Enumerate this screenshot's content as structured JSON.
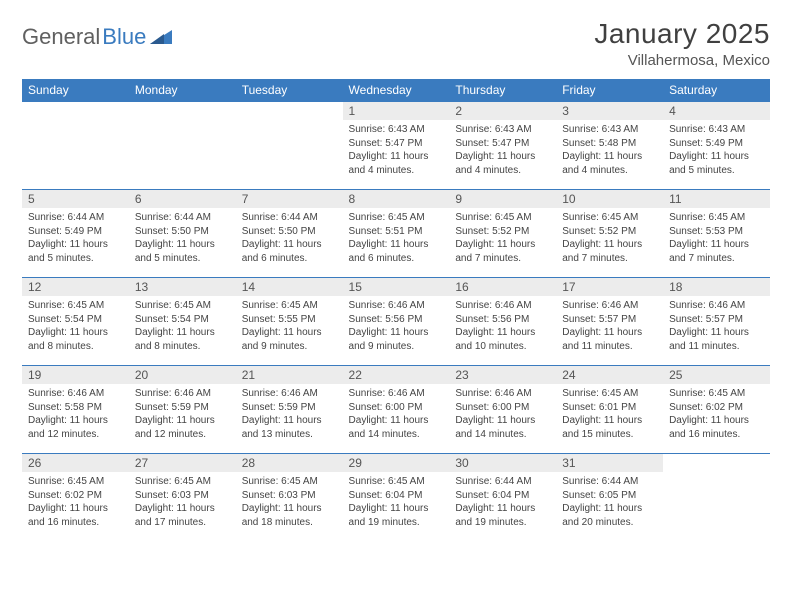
{
  "logo": {
    "part1": "General",
    "part2": "Blue"
  },
  "title": "January 2025",
  "location": "Villahermosa, Mexico",
  "colors": {
    "header_bg": "#3a7bbf",
    "header_text": "#ffffff",
    "daynum_bg": "#ececec",
    "border": "#3a7bbf",
    "logo_gray": "#606060",
    "logo_blue": "#3a7bbf"
  },
  "weekdays": [
    "Sunday",
    "Monday",
    "Tuesday",
    "Wednesday",
    "Thursday",
    "Friday",
    "Saturday"
  ],
  "weeks": [
    [
      null,
      null,
      null,
      {
        "n": "1",
        "sr": "6:43 AM",
        "ss": "5:47 PM",
        "dl": "11 hours and 4 minutes."
      },
      {
        "n": "2",
        "sr": "6:43 AM",
        "ss": "5:47 PM",
        "dl": "11 hours and 4 minutes."
      },
      {
        "n": "3",
        "sr": "6:43 AM",
        "ss": "5:48 PM",
        "dl": "11 hours and 4 minutes."
      },
      {
        "n": "4",
        "sr": "6:43 AM",
        "ss": "5:49 PM",
        "dl": "11 hours and 5 minutes."
      }
    ],
    [
      {
        "n": "5",
        "sr": "6:44 AM",
        "ss": "5:49 PM",
        "dl": "11 hours and 5 minutes."
      },
      {
        "n": "6",
        "sr": "6:44 AM",
        "ss": "5:50 PM",
        "dl": "11 hours and 5 minutes."
      },
      {
        "n": "7",
        "sr": "6:44 AM",
        "ss": "5:50 PM",
        "dl": "11 hours and 6 minutes."
      },
      {
        "n": "8",
        "sr": "6:45 AM",
        "ss": "5:51 PM",
        "dl": "11 hours and 6 minutes."
      },
      {
        "n": "9",
        "sr": "6:45 AM",
        "ss": "5:52 PM",
        "dl": "11 hours and 7 minutes."
      },
      {
        "n": "10",
        "sr": "6:45 AM",
        "ss": "5:52 PM",
        "dl": "11 hours and 7 minutes."
      },
      {
        "n": "11",
        "sr": "6:45 AM",
        "ss": "5:53 PM",
        "dl": "11 hours and 7 minutes."
      }
    ],
    [
      {
        "n": "12",
        "sr": "6:45 AM",
        "ss": "5:54 PM",
        "dl": "11 hours and 8 minutes."
      },
      {
        "n": "13",
        "sr": "6:45 AM",
        "ss": "5:54 PM",
        "dl": "11 hours and 8 minutes."
      },
      {
        "n": "14",
        "sr": "6:45 AM",
        "ss": "5:55 PM",
        "dl": "11 hours and 9 minutes."
      },
      {
        "n": "15",
        "sr": "6:46 AM",
        "ss": "5:56 PM",
        "dl": "11 hours and 9 minutes."
      },
      {
        "n": "16",
        "sr": "6:46 AM",
        "ss": "5:56 PM",
        "dl": "11 hours and 10 minutes."
      },
      {
        "n": "17",
        "sr": "6:46 AM",
        "ss": "5:57 PM",
        "dl": "11 hours and 11 minutes."
      },
      {
        "n": "18",
        "sr": "6:46 AM",
        "ss": "5:57 PM",
        "dl": "11 hours and 11 minutes."
      }
    ],
    [
      {
        "n": "19",
        "sr": "6:46 AM",
        "ss": "5:58 PM",
        "dl": "11 hours and 12 minutes."
      },
      {
        "n": "20",
        "sr": "6:46 AM",
        "ss": "5:59 PM",
        "dl": "11 hours and 12 minutes."
      },
      {
        "n": "21",
        "sr": "6:46 AM",
        "ss": "5:59 PM",
        "dl": "11 hours and 13 minutes."
      },
      {
        "n": "22",
        "sr": "6:46 AM",
        "ss": "6:00 PM",
        "dl": "11 hours and 14 minutes."
      },
      {
        "n": "23",
        "sr": "6:46 AM",
        "ss": "6:00 PM",
        "dl": "11 hours and 14 minutes."
      },
      {
        "n": "24",
        "sr": "6:45 AM",
        "ss": "6:01 PM",
        "dl": "11 hours and 15 minutes."
      },
      {
        "n": "25",
        "sr": "6:45 AM",
        "ss": "6:02 PM",
        "dl": "11 hours and 16 minutes."
      }
    ],
    [
      {
        "n": "26",
        "sr": "6:45 AM",
        "ss": "6:02 PM",
        "dl": "11 hours and 16 minutes."
      },
      {
        "n": "27",
        "sr": "6:45 AM",
        "ss": "6:03 PM",
        "dl": "11 hours and 17 minutes."
      },
      {
        "n": "28",
        "sr": "6:45 AM",
        "ss": "6:03 PM",
        "dl": "11 hours and 18 minutes."
      },
      {
        "n": "29",
        "sr": "6:45 AM",
        "ss": "6:04 PM",
        "dl": "11 hours and 19 minutes."
      },
      {
        "n": "30",
        "sr": "6:44 AM",
        "ss": "6:04 PM",
        "dl": "11 hours and 19 minutes."
      },
      {
        "n": "31",
        "sr": "6:44 AM",
        "ss": "6:05 PM",
        "dl": "11 hours and 20 minutes."
      },
      null
    ]
  ],
  "labels": {
    "sunrise": "Sunrise:",
    "sunset": "Sunset:",
    "daylight": "Daylight:"
  }
}
